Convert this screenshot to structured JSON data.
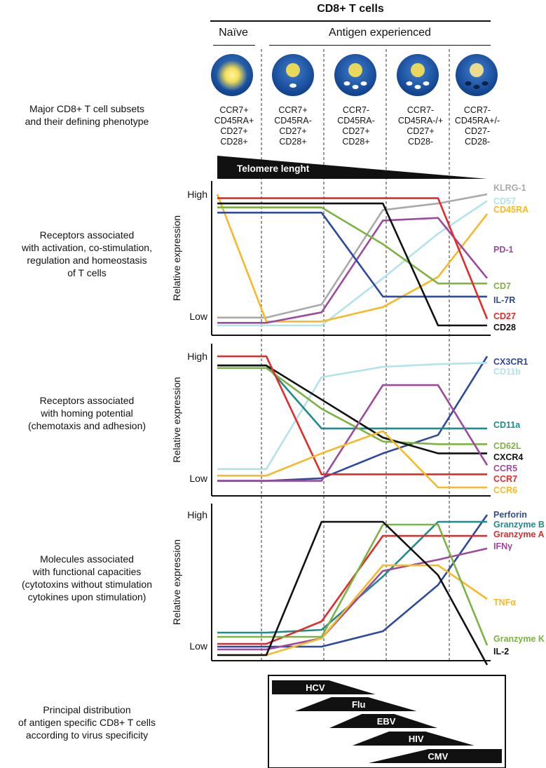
{
  "header": {
    "title": "CD8+ T cells",
    "naive": "Naïve",
    "experienced": "Antigen experienced"
  },
  "left_labels": {
    "subsets": [
      "Major CD8+ T cell subsets",
      "and their defining phenotype"
    ],
    "receptors1": [
      "Receptors associated",
      "with activation, co-stimulation,",
      "regulation and homeostasis",
      "of T cells"
    ],
    "receptors2": [
      "Receptors associated",
      "with homing potential",
      "(chemotaxis and adhesion)"
    ],
    "molecules": [
      "Molecules associated",
      "with functional capacities",
      "(cytotoxins without stimulation",
      "cytokines upon stimulation)"
    ],
    "distribution": [
      "Principal distribution",
      "of antigen specific CD8+ T cells",
      "according to virus specificity"
    ]
  },
  "subsets": [
    {
      "phenotype": [
        "CCR7+",
        "CD45RA+",
        "CD27+",
        "CD28+"
      ],
      "granules": 0
    },
    {
      "phenotype": [
        "CCR7+",
        "CD45RA-",
        "CD27+",
        "CD28+"
      ],
      "granules": 1
    },
    {
      "phenotype": [
        "CCR7-",
        "CD45RA-",
        "CD27+",
        "CD28+"
      ],
      "granules": 3
    },
    {
      "phenotype": [
        "CCR7-",
        "CD45RA-/+",
        "CD27+",
        "CD28-"
      ],
      "granules": 3
    },
    {
      "phenotype": [
        "CCR7-",
        "CD45RA+/-",
        "CD27-",
        "CD28-"
      ],
      "granules": 3
    }
  ],
  "telomere_label": "Telomere lenght",
  "axis": {
    "ylabel": "Relative expression",
    "high": "High",
    "low": "Low"
  },
  "chart_data": [
    {
      "type": "line",
      "ylabel": "Relative expression",
      "ytick_labels": [
        "Low",
        "High"
      ],
      "x": [
        0,
        0.8,
        1.7,
        2.7,
        3.6,
        4.4
      ],
      "series": [
        {
          "name": "KLRG-1",
          "color": "#a9a9a9",
          "values": [
            0.06,
            0.06,
            0.16,
            0.88,
            0.93,
            1.0
          ]
        },
        {
          "name": "CD57",
          "color": "#b3e2ea",
          "values": [
            0.0,
            0.0,
            0.0,
            0.36,
            0.7,
            0.95
          ]
        },
        {
          "name": "CD45RA",
          "color": "#f7b928",
          "values": [
            1.0,
            0.03,
            0.03,
            0.14,
            0.37,
            0.85
          ]
        },
        {
          "name": "PD-1",
          "color": "#9b4a9e",
          "values": [
            0.02,
            0.02,
            0.1,
            0.8,
            0.82,
            0.36
          ]
        },
        {
          "name": "CD7",
          "color": "#7cb342",
          "values": [
            0.9,
            0.9,
            0.9,
            0.62,
            0.32,
            0.32
          ]
        },
        {
          "name": "IL-7R",
          "color": "#2e4a9e",
          "values": [
            0.86,
            0.86,
            0.86,
            0.22,
            0.22,
            0.22
          ]
        },
        {
          "name": "CD27",
          "color": "#e32b2b",
          "values": [
            0.97,
            0.97,
            0.97,
            0.97,
            0.97,
            0.05
          ]
        },
        {
          "name": "CD28",
          "color": "#111111",
          "values": [
            0.93,
            0.93,
            0.93,
            0.93,
            0.0,
            0.0
          ]
        }
      ]
    },
    {
      "type": "line",
      "ylabel": "Relative expression",
      "ytick_labels": [
        "Low",
        "High"
      ],
      "x": [
        0,
        0.8,
        1.7,
        2.7,
        3.6,
        4.4
      ],
      "series": [
        {
          "name": "CX3CR1",
          "color": "#2e4a9e",
          "values": [
            0.05,
            0.05,
            0.07,
            0.26,
            0.4,
            1.0
          ]
        },
        {
          "name": "CD11b",
          "color": "#b3e2ea",
          "values": [
            0.14,
            0.14,
            0.84,
            0.92,
            0.94,
            0.95
          ]
        },
        {
          "name": "CD11a",
          "color": "#1f8c8c",
          "values": [
            0.93,
            0.93,
            0.45,
            0.45,
            0.45,
            0.45
          ]
        },
        {
          "name": "CD62L",
          "color": "#7cb342",
          "values": [
            0.91,
            0.91,
            0.6,
            0.35,
            0.33,
            0.33
          ]
        },
        {
          "name": "CXCR4",
          "color": "#111111",
          "values": [
            0.93,
            0.93,
            0.67,
            0.38,
            0.26,
            0.26
          ]
        },
        {
          "name": "CCR5",
          "color": "#9b4a9e",
          "values": [
            0.05,
            0.05,
            0.05,
            0.78,
            0.78,
            0.17
          ]
        },
        {
          "name": "CCR7",
          "color": "#e32b2b",
          "values": [
            1.0,
            1.0,
            0.1,
            0.1,
            0.1,
            0.1
          ]
        },
        {
          "name": "CCR6",
          "color": "#f7b928",
          "values": [
            0.09,
            0.09,
            0.26,
            0.43,
            0.0,
            0.0
          ]
        }
      ]
    },
    {
      "type": "line",
      "ylabel": "Relative expression",
      "ytick_labels": [
        "Low",
        "High"
      ],
      "x": [
        0,
        0.8,
        1.7,
        2.7,
        3.6,
        4.4
      ],
      "series": [
        {
          "name": "Perforin",
          "color": "#2e4a9e",
          "values": [
            0.06,
            0.06,
            0.06,
            0.17,
            0.5,
            1.0
          ]
        },
        {
          "name": "Granzyme B",
          "color": "#1f8c8c",
          "values": [
            0.16,
            0.16,
            0.18,
            0.56,
            0.95,
            0.95
          ]
        },
        {
          "name": "Granzyme A",
          "color": "#e32b2b",
          "values": [
            0.08,
            0.08,
            0.24,
            0.85,
            0.85,
            0.85
          ]
        },
        {
          "name": "IFNγ",
          "color": "#9b4a9e",
          "values": [
            0.04,
            0.04,
            0.12,
            0.6,
            0.68,
            0.76
          ]
        },
        {
          "name": "TNFα",
          "color": "#f7b928",
          "values": [
            0.0,
            0.0,
            0.12,
            0.64,
            0.64,
            0.4
          ]
        },
        {
          "name": "Granzyme K",
          "color": "#7cb342",
          "values": [
            0.13,
            0.13,
            0.13,
            0.93,
            0.93,
            0.07
          ]
        },
        {
          "name": "IL-2",
          "color": "#111111",
          "values": [
            0.0,
            0.0,
            0.95,
            0.95,
            0.57,
            -0.07
          ]
        }
      ]
    }
  ],
  "viruses": [
    {
      "name": "HCV",
      "start": 0.0,
      "end": 0.45
    },
    {
      "name": "Flu",
      "start": 0.1,
      "end": 0.63
    },
    {
      "name": "EBV",
      "start": 0.25,
      "end": 0.72
    },
    {
      "name": "HIV",
      "start": 0.35,
      "end": 0.88
    },
    {
      "name": "CMV",
      "start": 0.42,
      "end": 1.0
    }
  ]
}
